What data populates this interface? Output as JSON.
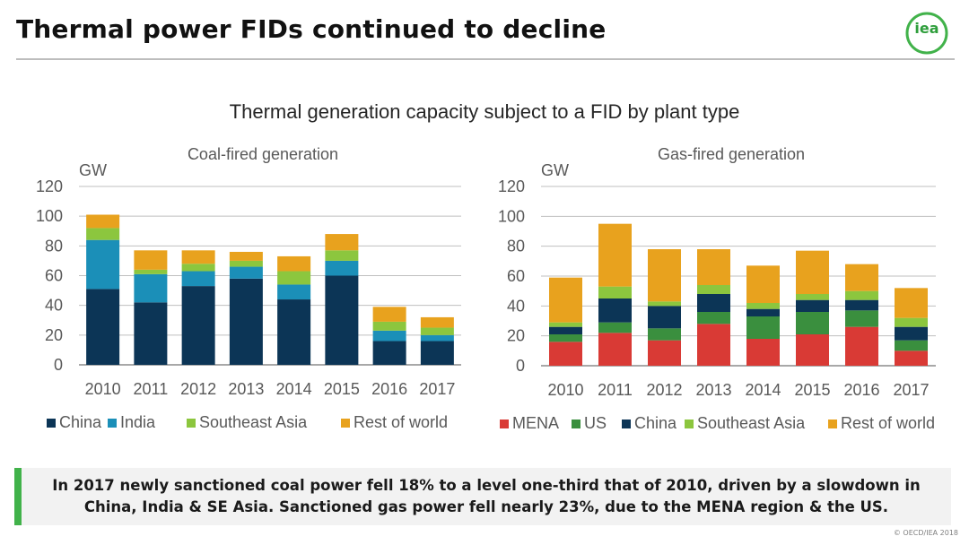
{
  "slide_title": "Thermal power FIDs continued to decline",
  "logo_text": "iea",
  "main_title": "Thermal generation capacity subject to a FID by plant type",
  "colors": {
    "china": "#0c3556",
    "india": "#1b8fb8",
    "southeast_asia": "#8cc63e",
    "rest_of_world": "#e8a21e",
    "mena": "#d93a35",
    "us": "#3a8f3e",
    "accent": "#41b24a"
  },
  "chart_data": [
    {
      "type": "bar",
      "stacked": true,
      "title": "Coal-fired generation",
      "ylabel": "GW",
      "xlabel": "",
      "ylim": [
        0,
        120
      ],
      "yticks": [
        0,
        20,
        40,
        60,
        80,
        100,
        120
      ],
      "grid": true,
      "legend": "bottom",
      "categories": [
        "2010",
        "2011",
        "2012",
        "2013",
        "2014",
        "2015",
        "2016",
        "2017"
      ],
      "series": [
        {
          "name": "China",
          "color": "#0c3556",
          "values": [
            51,
            42,
            53,
            58,
            44,
            60,
            16,
            16
          ]
        },
        {
          "name": "India",
          "color": "#1b8fb8",
          "values": [
            33,
            19,
            10,
            8,
            10,
            10,
            7,
            4
          ]
        },
        {
          "name": "Southeast Asia",
          "color": "#8cc63e",
          "values": [
            8,
            3,
            5,
            4,
            9,
            7,
            6,
            5
          ]
        },
        {
          "name": "Rest of world",
          "color": "#e8a21e",
          "values": [
            9,
            13,
            9,
            6,
            10,
            11,
            10,
            7
          ]
        }
      ]
    },
    {
      "type": "bar",
      "stacked": true,
      "title": "Gas-fired generation",
      "ylabel": "GW",
      "xlabel": "",
      "ylim": [
        0,
        120
      ],
      "yticks": [
        0,
        20,
        40,
        60,
        80,
        100,
        120
      ],
      "grid": true,
      "legend": "bottom",
      "categories": [
        "2010",
        "2011",
        "2012",
        "2013",
        "2014",
        "2015",
        "2016",
        "2017"
      ],
      "series": [
        {
          "name": "MENA",
          "color": "#d93a35",
          "values": [
            16,
            22,
            17,
            28,
            18,
            21,
            26,
            10
          ]
        },
        {
          "name": "US",
          "color": "#3a8f3e",
          "values": [
            5,
            7,
            8,
            8,
            15,
            15,
            11,
            7
          ]
        },
        {
          "name": "China",
          "color": "#0c3556",
          "values": [
            5,
            16,
            15,
            12,
            5,
            8,
            7,
            9
          ]
        },
        {
          "name": "Southeast Asia",
          "color": "#8cc63e",
          "values": [
            3,
            8,
            3,
            6,
            4,
            4,
            6,
            6
          ]
        },
        {
          "name": "Rest of world",
          "color": "#e8a21e",
          "values": [
            30,
            42,
            35,
            24,
            25,
            29,
            18,
            20
          ]
        }
      ]
    }
  ],
  "callout": {
    "line1": "In 2017 newly sanctioned coal power fell 18% to a level one-third that of 2010, driven by a slowdown in",
    "line2": "China, India & SE Asia. Sanctioned gas power fell nearly 23%, due to the MENA region & the US."
  },
  "copyright": "© OECD/IEA 2018"
}
